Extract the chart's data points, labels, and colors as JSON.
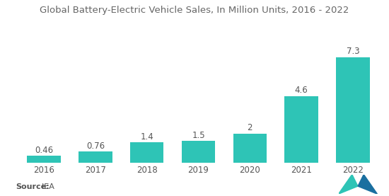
{
  "title": "Global Battery-Electric Vehicle Sales, In Million Units, 2016 - 2022",
  "categories": [
    "2016",
    "2017",
    "2018",
    "2019",
    "2020",
    "2021",
    "2022"
  ],
  "values": [
    0.46,
    0.76,
    1.4,
    1.5,
    2,
    4.6,
    7.3
  ],
  "labels": [
    "0.46",
    "0.76",
    "1.4",
    "1.5",
    "2",
    "4.6",
    "7.3"
  ],
  "bar_color": "#2EC4B6",
  "background_color": "#ffffff",
  "source_label": "Source:",
  "source_value": "  IEA",
  "title_fontsize": 9.5,
  "label_fontsize": 8.5,
  "tick_fontsize": 8.5,
  "source_fontsize": 8,
  "ylim": [
    0,
    8.8
  ],
  "bar_width": 0.65
}
